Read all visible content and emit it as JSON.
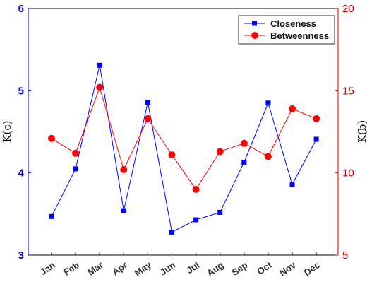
{
  "chart_data": {
    "type": "line",
    "categories": [
      "Jan",
      "Feb",
      "Mar",
      "Apr",
      "May",
      "Jun",
      "Jul",
      "Aug",
      "Sep",
      "Oct",
      "Nov",
      "Dec"
    ],
    "series": [
      {
        "name": "Closeness",
        "axis": "left",
        "color": "#0000ff",
        "marker": "square",
        "values": [
          3.47,
          4.05,
          5.31,
          3.54,
          4.86,
          3.28,
          3.43,
          3.52,
          4.13,
          4.85,
          3.86,
          4.41
        ]
      },
      {
        "name": "Betweenness",
        "axis": "right",
        "color": "#ff0000",
        "marker": "circle",
        "values": [
          12.1,
          11.2,
          15.2,
          10.2,
          13.3,
          11.1,
          9.0,
          11.3,
          11.8,
          11.0,
          13.9,
          13.3
        ]
      }
    ],
    "ylabel_left": "K(c)",
    "ylabel_right": "K(b)",
    "ylim_left": [
      3,
      6
    ],
    "yticks_left": [
      "3",
      "4",
      "5",
      "6"
    ],
    "ylim_right": [
      5,
      20
    ],
    "yticks_right": [
      "5",
      "10",
      "15",
      "20"
    ],
    "grid": false,
    "legend_position": "top-right",
    "colors": {
      "left_axis": "#0000cc",
      "right_axis": "#cc0000",
      "x_axis": "#000000"
    }
  }
}
